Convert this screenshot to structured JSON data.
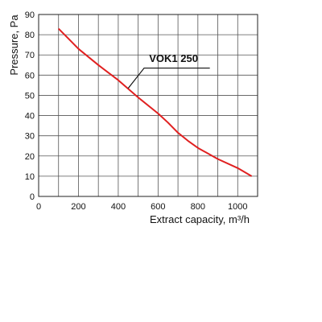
{
  "chart_data": {
    "type": "line",
    "xlabel": "Extract capacity, m³/h",
    "ylabel": "Pressure, Pa",
    "xlim": [
      0,
      1100
    ],
    "ylim": [
      0,
      90
    ],
    "xticks": [
      0,
      200,
      400,
      600,
      800,
      1000
    ],
    "yticks": [
      0,
      10,
      20,
      30,
      40,
      50,
      60,
      70,
      80,
      90
    ],
    "grid": true,
    "series": [
      {
        "name": "VOK1 250",
        "color": "#e02020",
        "x": [
          100,
          150,
          200,
          300,
          400,
          500,
          600,
          650,
          700,
          750,
          800,
          900,
          1000,
          1070
        ],
        "y": [
          83,
          78,
          73,
          65,
          57.5,
          49,
          41,
          36.5,
          31.5,
          27.5,
          24,
          18.5,
          14,
          10
        ]
      }
    ]
  }
}
